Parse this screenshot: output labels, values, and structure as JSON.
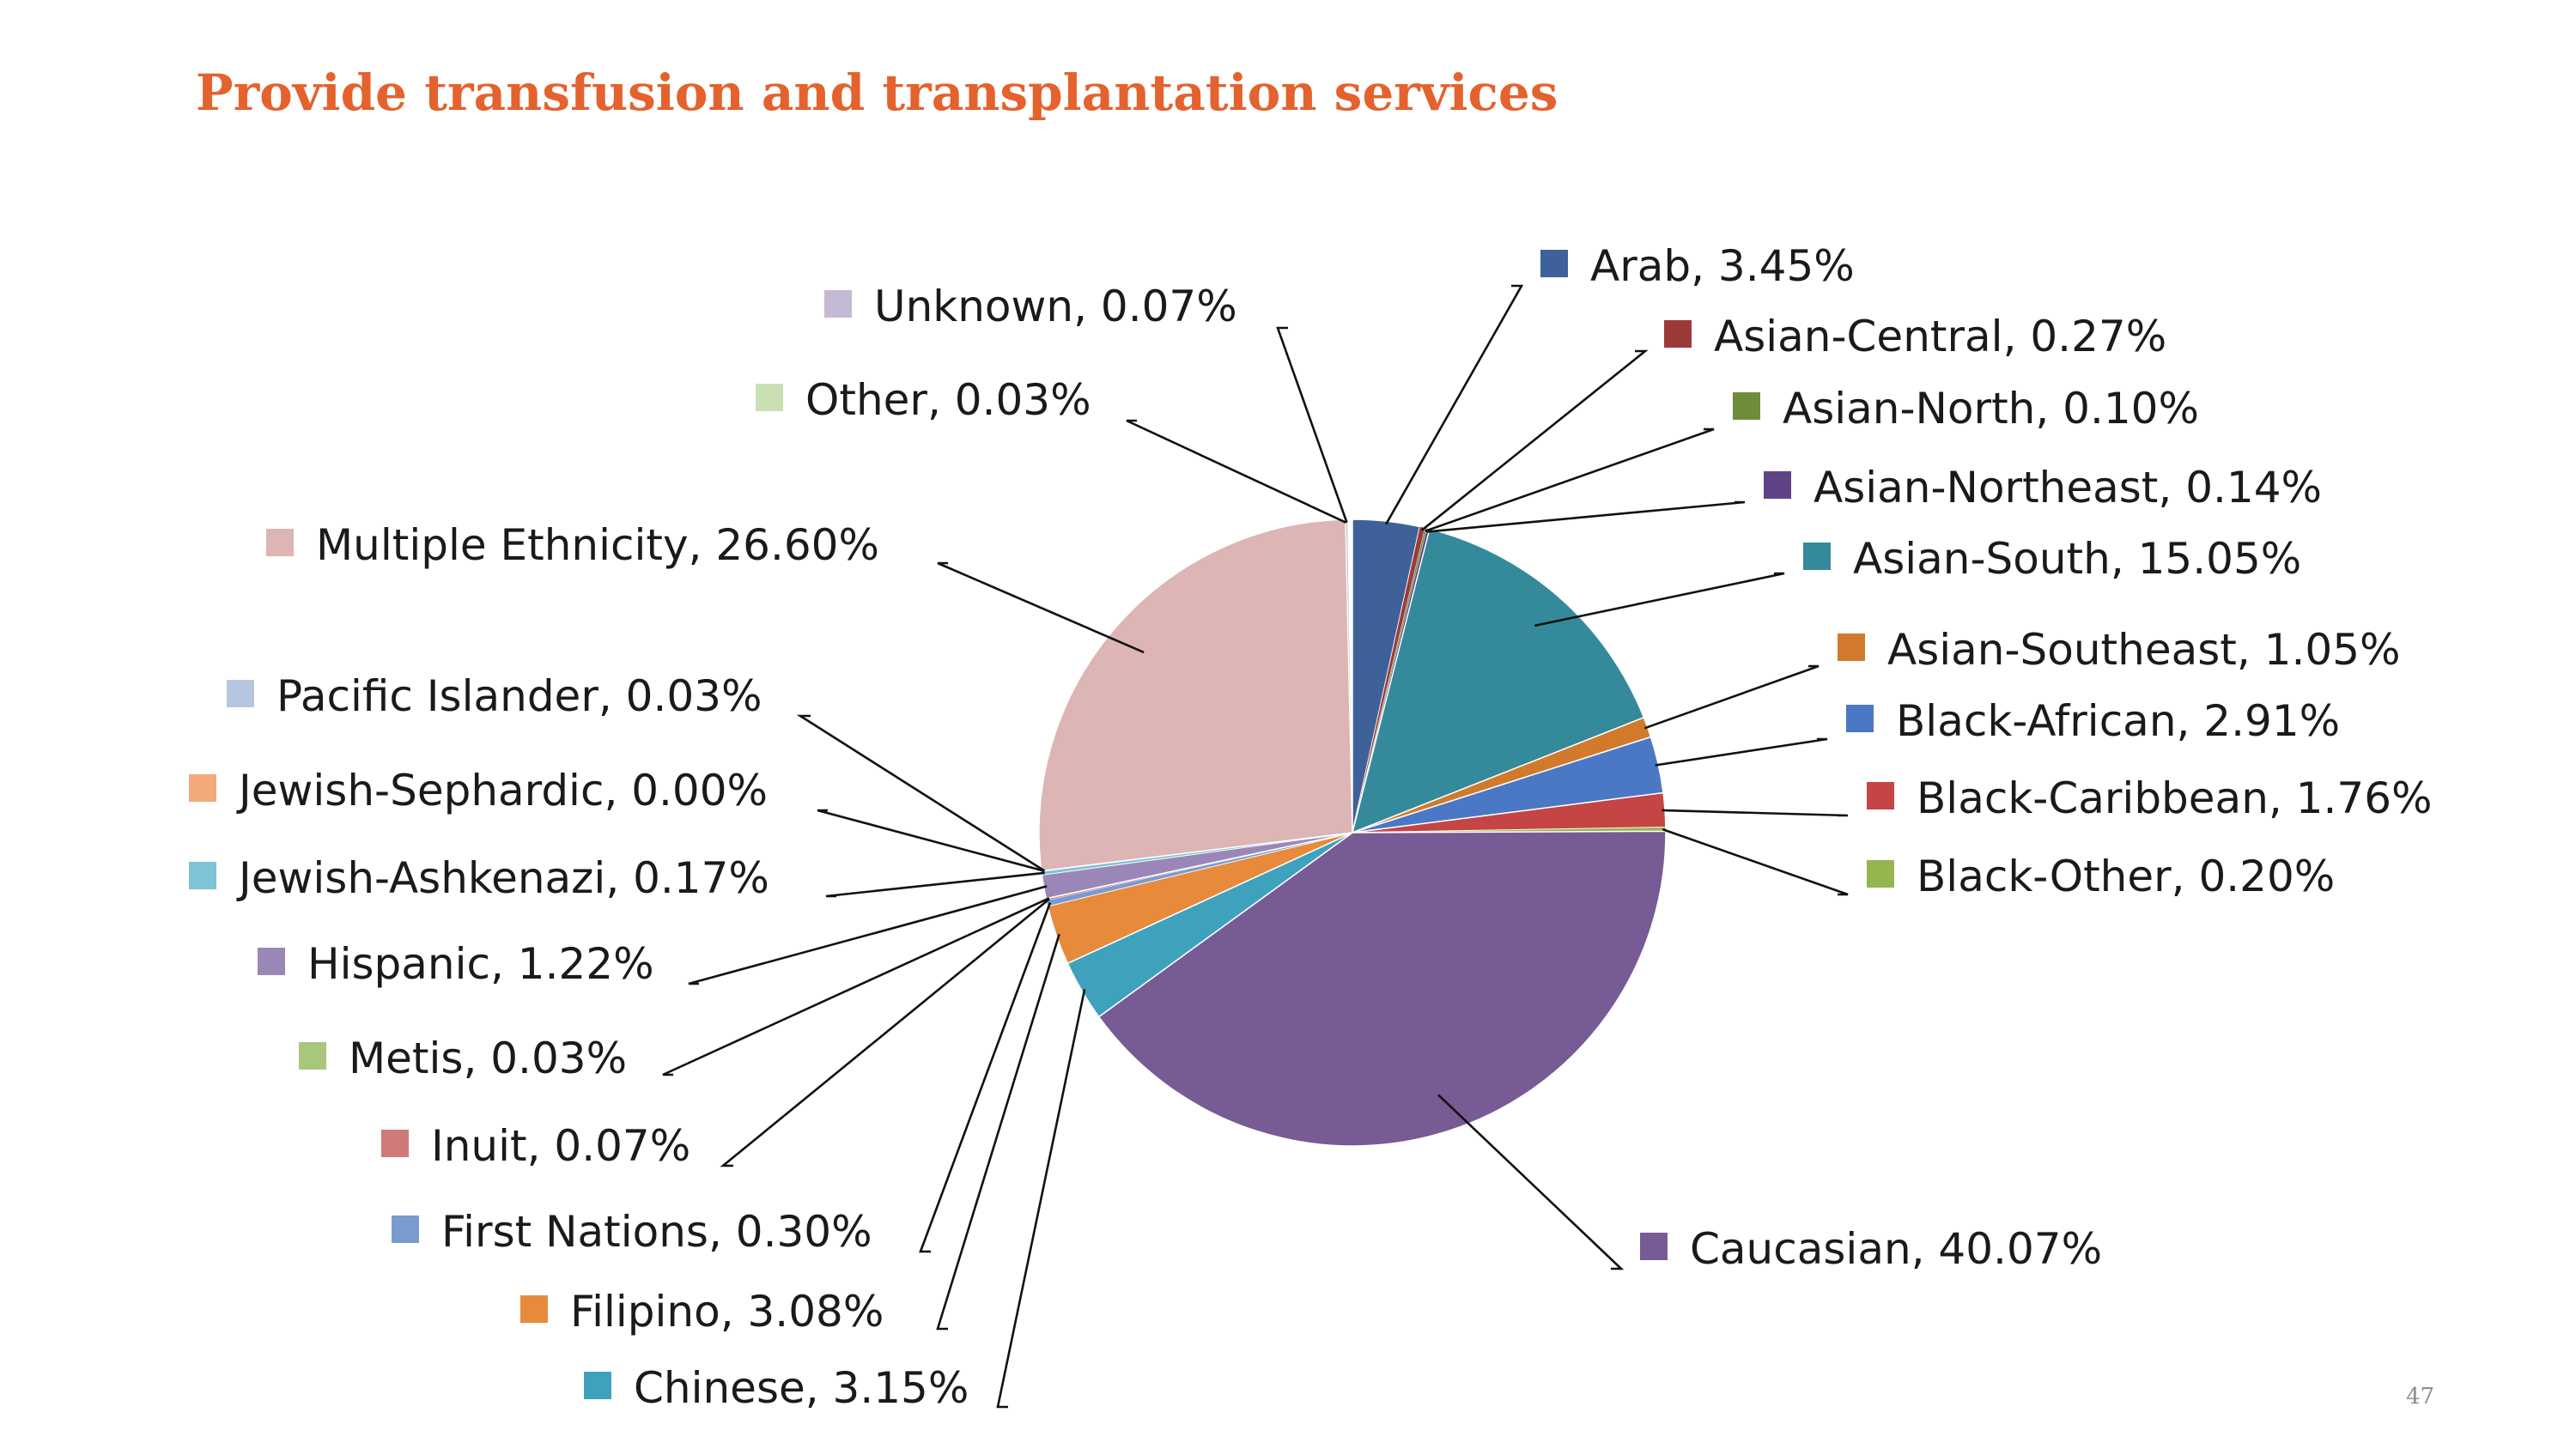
{
  "title": "Provide transfusion and transplantation services",
  "page_number": "47",
  "chart_data": {
    "type": "pie",
    "title": "",
    "start_angle_deg": 0,
    "direction": "clockwise",
    "label_format": "{name}, {value}",
    "slices": [
      {
        "name": "Arab",
        "value": "3.45%",
        "pct": 3.45,
        "color": "#3f6199"
      },
      {
        "name": "Asian-Central",
        "value": "0.27%",
        "pct": 0.27,
        "color": "#9c3a3a"
      },
      {
        "name": "Asian-North",
        "value": "0.10%",
        "pct": 0.1,
        "color": "#6e8d3a"
      },
      {
        "name": "Asian-Northeast",
        "value": "0.14%",
        "pct": 0.14,
        "color": "#5e4487"
      },
      {
        "name": "Asian-South",
        "value": "15.05%",
        "pct": 15.05,
        "color": "#348a9a"
      },
      {
        "name": "Asian-Southeast",
        "value": "1.05%",
        "pct": 1.05,
        "color": "#d17a2c"
      },
      {
        "name": "Black-African",
        "value": "2.91%",
        "pct": 2.91,
        "color": "#4a78c4"
      },
      {
        "name": "Black-Caribbean",
        "value": "1.76%",
        "pct": 1.76,
        "color": "#c44544"
      },
      {
        "name": "Black-Other",
        "value": "0.20%",
        "pct": 0.2,
        "color": "#95b54f"
      },
      {
        "name": "Caucasian",
        "value": "40.07%",
        "pct": 40.07,
        "color": "#775b95"
      },
      {
        "name": "Chinese",
        "value": "3.15%",
        "pct": 3.15,
        "color": "#3fa2bd"
      },
      {
        "name": "Filipino",
        "value": "3.08%",
        "pct": 3.08,
        "color": "#e78a3c"
      },
      {
        "name": "First Nations",
        "value": "0.30%",
        "pct": 0.3,
        "color": "#7a9bd0"
      },
      {
        "name": "Inuit",
        "value": "0.07%",
        "pct": 0.07,
        "color": "#cf7a78"
      },
      {
        "name": "Metis",
        "value": "0.03%",
        "pct": 0.03,
        "color": "#a9c77c"
      },
      {
        "name": "Hispanic",
        "value": "1.22%",
        "pct": 1.22,
        "color": "#9a87b8"
      },
      {
        "name": "Jewish-Ashkenazi",
        "value": "0.17%",
        "pct": 0.17,
        "color": "#7ec3d6"
      },
      {
        "name": "Jewish-Sephardic",
        "value": "0.00%",
        "pct": 0.0,
        "color": "#f3a97a"
      },
      {
        "name": "Pacific Islander",
        "value": "0.03%",
        "pct": 0.03,
        "color": "#b6c5e0"
      },
      {
        "name": "Multiple Ethnicity",
        "value": "26.60%",
        "pct": 26.6,
        "color": "#dcb5b4"
      },
      {
        "name": "Other",
        "value": "0.03%",
        "pct": 0.03,
        "color": "#cadfb4"
      },
      {
        "name": "Unknown",
        "value": "0.07%",
        "pct": 0.07,
        "color": "#c4bad6"
      }
    ]
  }
}
